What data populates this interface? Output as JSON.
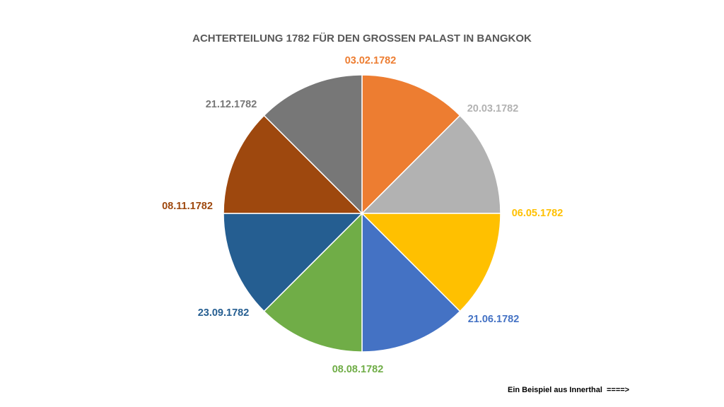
{
  "chart_data": {
    "type": "pie",
    "title": "ACHTERTEILUNG 1782 FÜR DEN GROSSEN PALAST IN BANGKOK",
    "categories": [
      "03.02.1782",
      "20.03.1782",
      "06.05.1782",
      "21.06.1782",
      "08.08.1782",
      "23.09.1782",
      "08.11.1782",
      "21.12.1782"
    ],
    "values": [
      1,
      1,
      1,
      1,
      1,
      1,
      1,
      1
    ],
    "colors": [
      "#ED7D31",
      "#B2B2B2",
      "#FFC000",
      "#4472C4",
      "#70AD47",
      "#255E91",
      "#9E480E",
      "#777777"
    ],
    "label_colors": [
      "#ED7D31",
      "#B2B2B2",
      "#FFC000",
      "#4472C4",
      "#70AD47",
      "#255E91",
      "#9E480E",
      "#777777"
    ],
    "start_angle_deg": 0,
    "direction": "clockwise",
    "legend": "none"
  },
  "footnote": {
    "text": "Ein Beispiel aus Innerthal  ====>"
  }
}
